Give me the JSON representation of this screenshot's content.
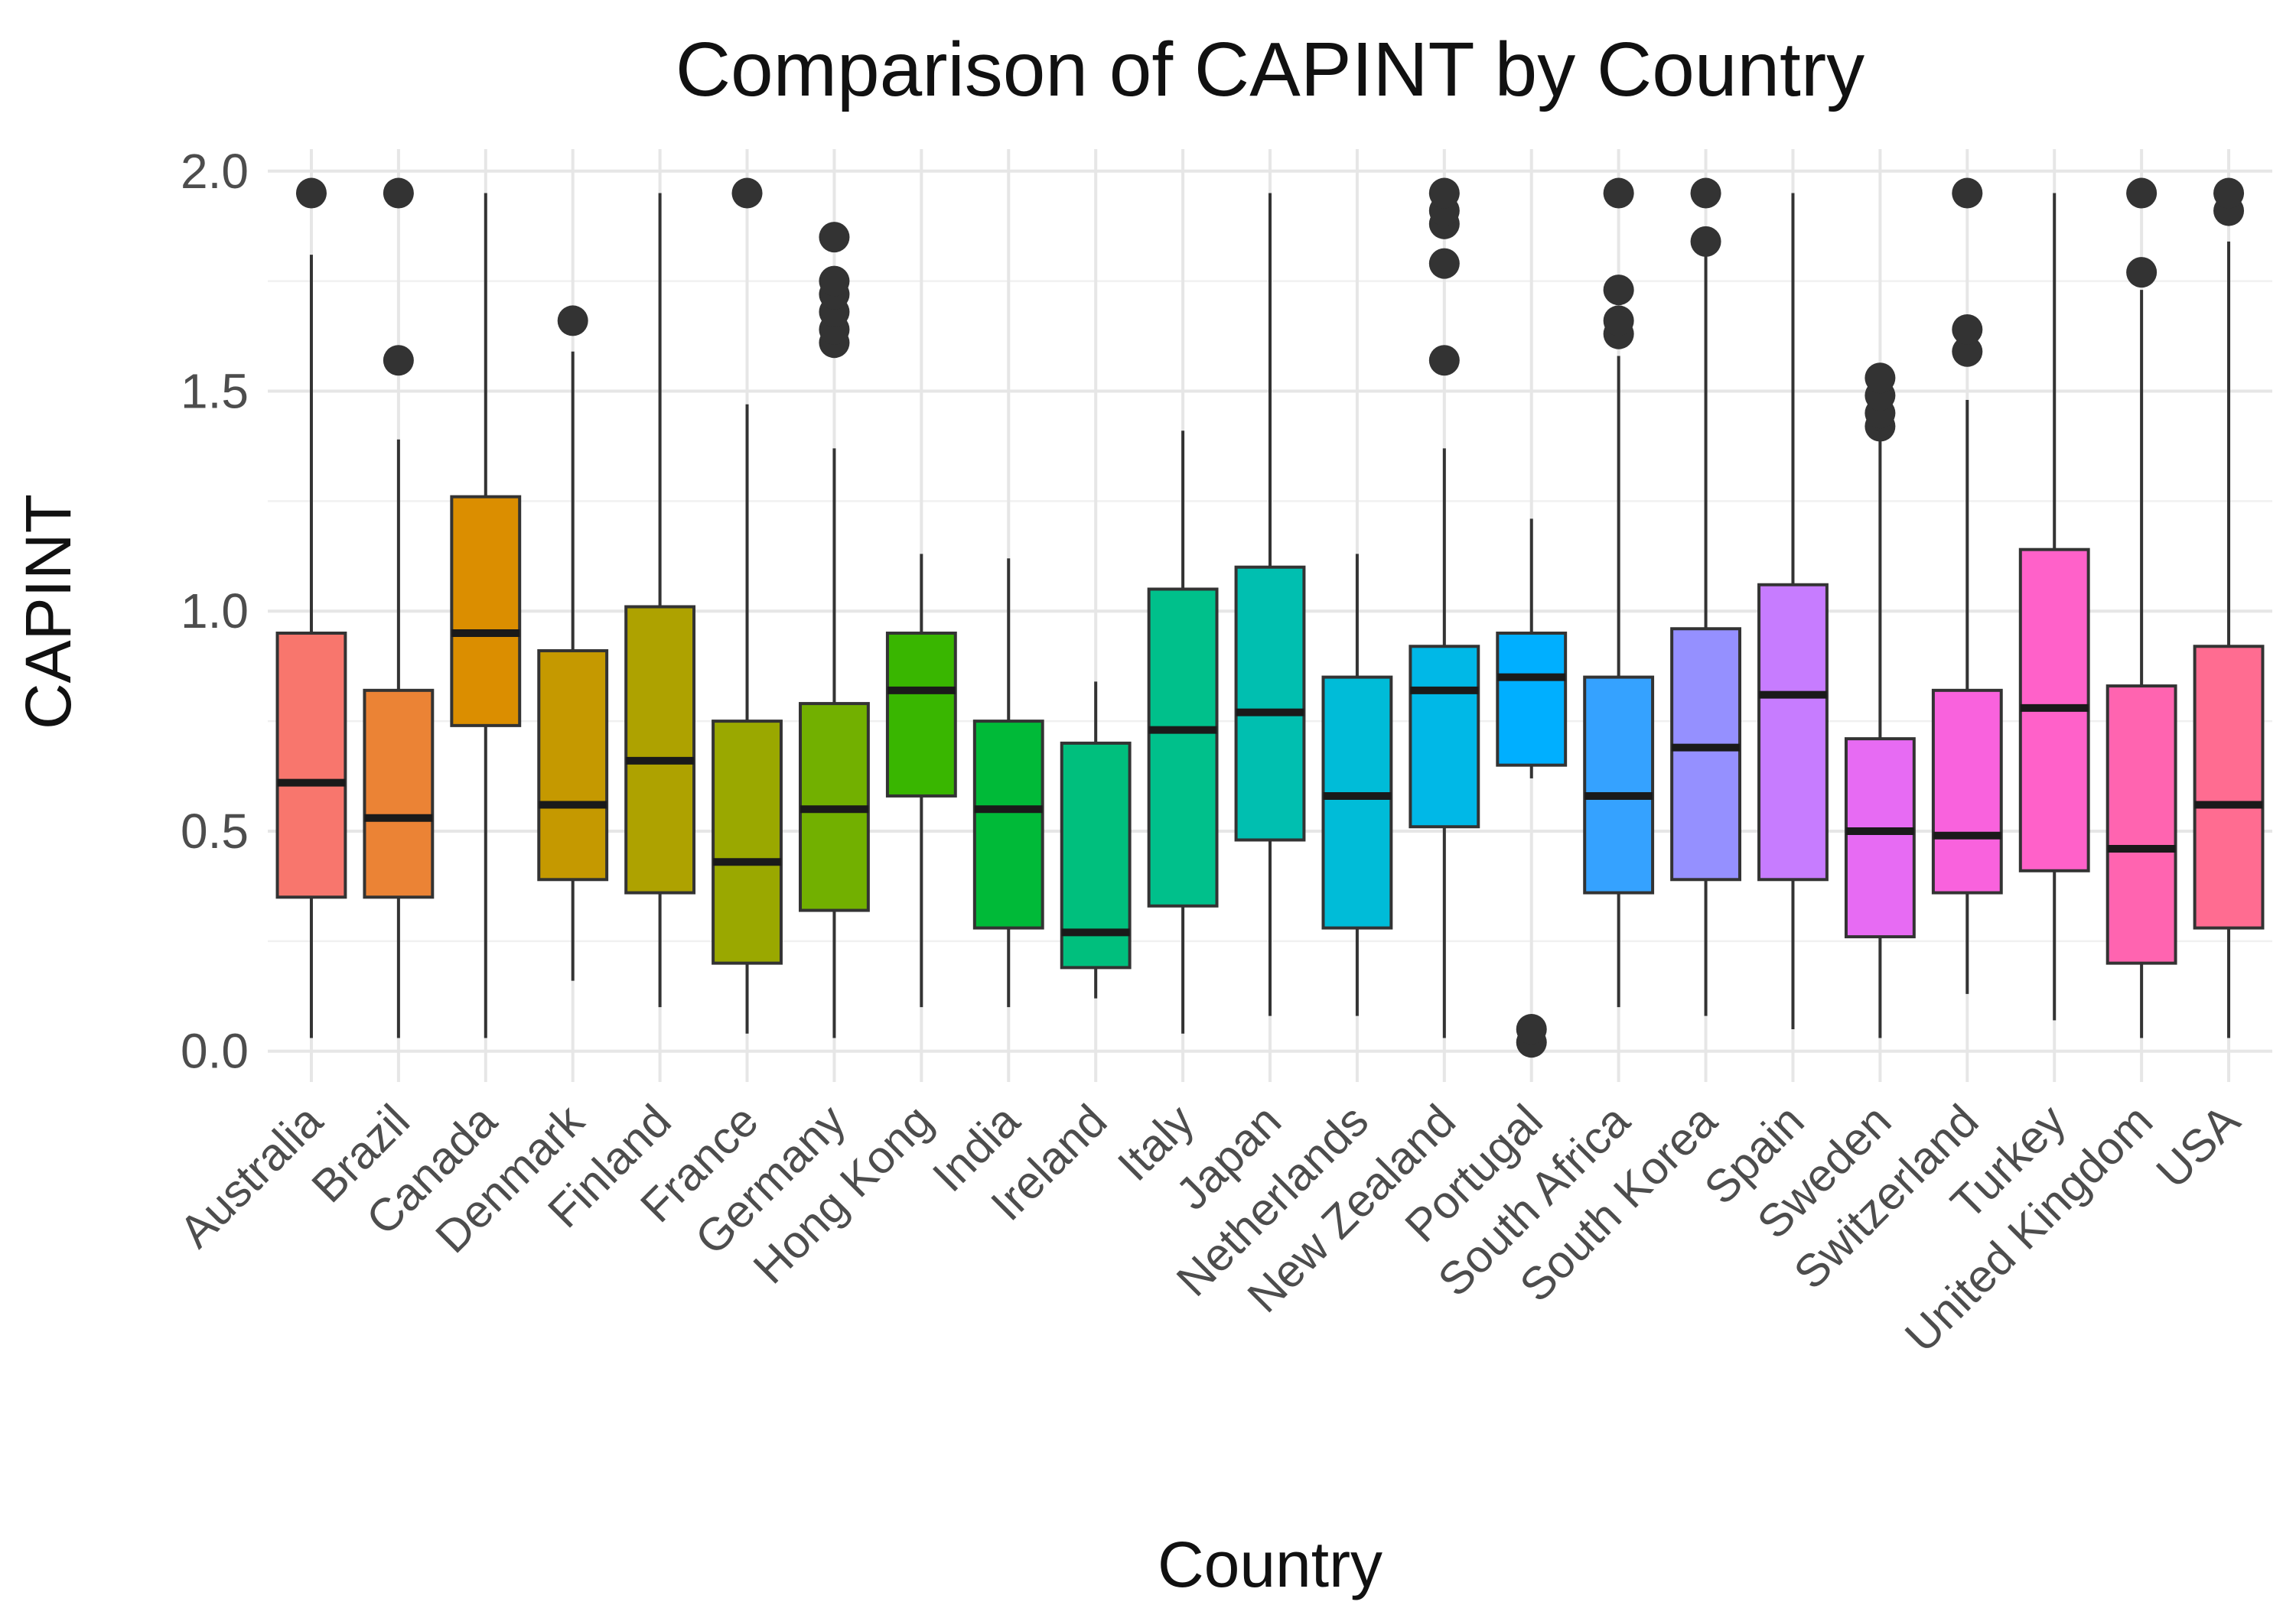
{
  "chart_data": {
    "type": "boxplot",
    "title": "Comparison of CAPINT by Country",
    "xlabel": "Country",
    "ylabel": "CAPINT",
    "ylim": [
      -0.07,
      2.05
    ],
    "yticks": [
      0.0,
      0.5,
      1.0,
      1.5,
      2.0
    ],
    "ytick_labels": [
      "0.0",
      "0.5",
      "1.0",
      "1.5",
      "2.0"
    ],
    "grid": true,
    "legend": "none",
    "categories": [
      "Australia",
      "Brazil",
      "Canada",
      "Denmark",
      "Finland",
      "France",
      "Germany",
      "Hong Kong",
      "India",
      "Ireland",
      "Italy",
      "Japan",
      "Netherlands",
      "New Zealand",
      "Portugal",
      "South Africa",
      "South Korea",
      "Spain",
      "Sweden",
      "Switzerland",
      "Turkey",
      "United Kingdom",
      "USA"
    ],
    "boxes": [
      {
        "min": 0.03,
        "q1": 0.35,
        "median": 0.61,
        "q3": 0.95,
        "max": 1.81,
        "outliers": [
          1.95
        ],
        "color": "#F8766D"
      },
      {
        "min": 0.03,
        "q1": 0.35,
        "median": 0.53,
        "q3": 0.82,
        "max": 1.39,
        "outliers": [
          1.57,
          1.95
        ],
        "color": "#EB8335"
      },
      {
        "min": 0.03,
        "q1": 0.74,
        "median": 0.95,
        "q3": 1.26,
        "max": 1.95,
        "outliers": [],
        "color": "#DB8E00"
      },
      {
        "min": 0.16,
        "q1": 0.39,
        "median": 0.56,
        "q3": 0.91,
        "max": 1.59,
        "outliers": [
          1.66
        ],
        "color": "#C59900"
      },
      {
        "min": 0.1,
        "q1": 0.36,
        "median": 0.66,
        "q3": 1.01,
        "max": 1.95,
        "outliers": [],
        "color": "#AEA200"
      },
      {
        "min": 0.04,
        "q1": 0.2,
        "median": 0.43,
        "q3": 0.75,
        "max": 1.47,
        "outliers": [
          1.95
        ],
        "color": "#9AA800"
      },
      {
        "min": 0.03,
        "q1": 0.32,
        "median": 0.55,
        "q3": 0.79,
        "max": 1.37,
        "outliers": [
          1.61,
          1.64,
          1.68,
          1.72,
          1.75,
          1.85
        ],
        "color": "#72B000"
      },
      {
        "min": 0.1,
        "q1": 0.58,
        "median": 0.82,
        "q3": 0.95,
        "max": 1.13,
        "outliers": [],
        "color": "#39B600"
      },
      {
        "min": 0.1,
        "q1": 0.28,
        "median": 0.55,
        "q3": 0.75,
        "max": 1.12,
        "outliers": [],
        "color": "#00BA38"
      },
      {
        "min": 0.12,
        "q1": 0.19,
        "median": 0.27,
        "q3": 0.7,
        "max": 0.84,
        "outliers": [],
        "color": "#00BF7D"
      },
      {
        "min": 0.04,
        "q1": 0.33,
        "median": 0.73,
        "q3": 1.05,
        "max": 1.41,
        "outliers": [],
        "color": "#00C08B"
      },
      {
        "min": 0.08,
        "q1": 0.48,
        "median": 0.77,
        "q3": 1.1,
        "max": 1.95,
        "outliers": [],
        "color": "#00BFB0"
      },
      {
        "min": 0.08,
        "q1": 0.28,
        "median": 0.58,
        "q3": 0.85,
        "max": 1.13,
        "outliers": [],
        "color": "#00BCD8"
      },
      {
        "min": 0.03,
        "q1": 0.51,
        "median": 0.82,
        "q3": 0.92,
        "max": 1.37,
        "outliers": [
          1.57,
          1.79,
          1.88,
          1.91,
          1.95
        ],
        "color": "#00B8E7"
      },
      {
        "min": 0.62,
        "q1": 0.65,
        "median": 0.85,
        "q3": 0.95,
        "max": 1.21,
        "outliers": [
          0.02,
          0.05
        ],
        "color": "#00AFFF"
      },
      {
        "min": 0.1,
        "q1": 0.36,
        "median": 0.58,
        "q3": 0.85,
        "max": 1.58,
        "outliers": [
          1.63,
          1.66,
          1.73,
          1.95
        ],
        "color": "#35A2FF"
      },
      {
        "min": 0.08,
        "q1": 0.39,
        "median": 0.69,
        "q3": 0.96,
        "max": 1.81,
        "outliers": [
          1.84,
          1.95
        ],
        "color": "#9590FF"
      },
      {
        "min": 0.05,
        "q1": 0.39,
        "median": 0.81,
        "q3": 1.06,
        "max": 1.95,
        "outliers": [],
        "color": "#C77CFF"
      },
      {
        "min": 0.03,
        "q1": 0.26,
        "median": 0.5,
        "q3": 0.71,
        "max": 1.39,
        "outliers": [
          1.42,
          1.45,
          1.49,
          1.53
        ],
        "color": "#E76BF3"
      },
      {
        "min": 0.13,
        "q1": 0.36,
        "median": 0.49,
        "q3": 0.82,
        "max": 1.48,
        "outliers": [
          1.59,
          1.64,
          1.95
        ],
        "color": "#F962DD"
      },
      {
        "min": 0.07,
        "q1": 0.41,
        "median": 0.78,
        "q3": 1.14,
        "max": 1.95,
        "outliers": [],
        "color": "#FF61C9"
      },
      {
        "min": 0.03,
        "q1": 0.2,
        "median": 0.46,
        "q3": 0.83,
        "max": 1.73,
        "outliers": [
          1.77,
          1.95
        ],
        "color": "#FF64B0"
      },
      {
        "min": 0.03,
        "q1": 0.28,
        "median": 0.56,
        "q3": 0.92,
        "max": 1.84,
        "outliers": [
          1.91,
          1.95
        ],
        "color": "#FF6C91"
      }
    ]
  }
}
